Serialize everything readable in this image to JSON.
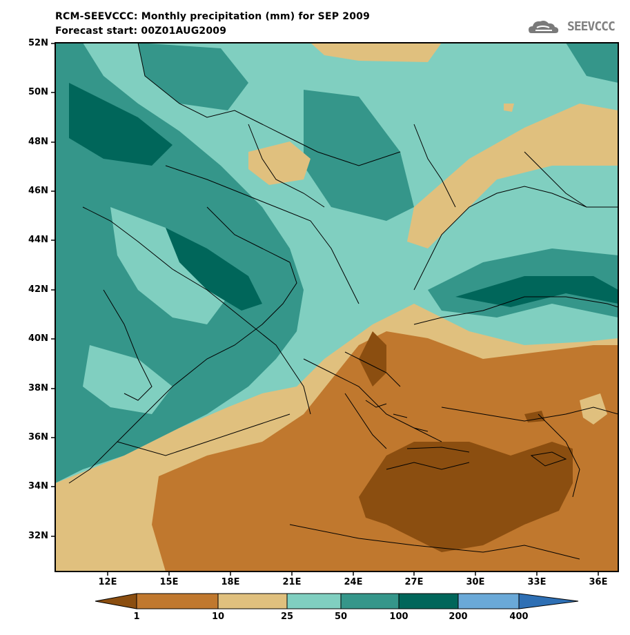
{
  "header": {
    "title": "RCM-SEEVCCC: Monthly precipitation (mm) for SEP 2009",
    "subtitle": "Forecast start: 00Z01AUG2009",
    "logo_text": "SEEVCCC"
  },
  "map": {
    "lat_labels": [
      "52N",
      "50N",
      "48N",
      "46N",
      "44N",
      "42N",
      "40N",
      "38N",
      "36N",
      "34N",
      "32N"
    ],
    "lon_labels": [
      "12E",
      "15E",
      "18E",
      "21E",
      "24E",
      "27E",
      "30E",
      "33E",
      "36E"
    ]
  },
  "legend": {
    "labels": [
      "1",
      "10",
      "25",
      "50",
      "100",
      "200",
      "400"
    ],
    "colors": [
      "#8b4e10",
      "#c0782e",
      "#e0c07e",
      "#80cfc0",
      "#35968a",
      "#00665a",
      "#6aa9d8",
      "#2e6fb4"
    ]
  }
}
